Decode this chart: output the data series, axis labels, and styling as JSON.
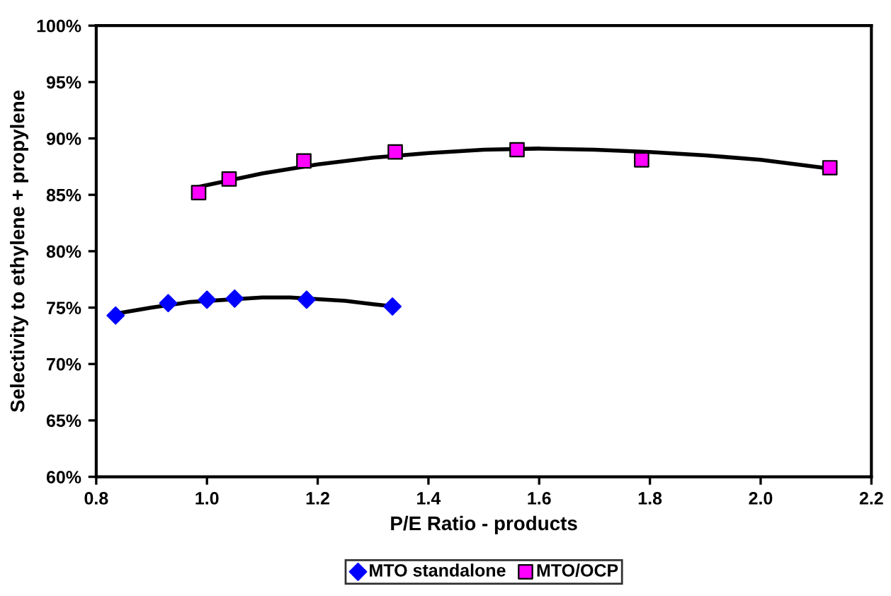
{
  "chart_data": {
    "type": "scatter",
    "xlabel": "P/E Ratio - products",
    "ylabel": "Selectivity to ethylene + propylene",
    "xlim": [
      0.8,
      2.2
    ],
    "xticks": [
      {
        "value": 0.8,
        "label": "0.8"
      },
      {
        "value": 1.0,
        "label": "1.0"
      },
      {
        "value": 1.2,
        "label": "1.2"
      },
      {
        "value": 1.4,
        "label": "1.4"
      },
      {
        "value": 1.6,
        "label": "1.6"
      },
      {
        "value": 1.8,
        "label": "1.8"
      },
      {
        "value": 2.0,
        "label": "2.0"
      },
      {
        "value": 2.2,
        "label": "2.2"
      }
    ],
    "ylim": [
      60,
      100
    ],
    "yticks": [
      {
        "value": 60,
        "label": "60%"
      },
      {
        "value": 65,
        "label": "65%"
      },
      {
        "value": 70,
        "label": "70%"
      },
      {
        "value": 75,
        "label": "75%"
      },
      {
        "value": 80,
        "label": "80%"
      },
      {
        "value": 85,
        "label": "85%"
      },
      {
        "value": 90,
        "label": "90%"
      },
      {
        "value": 95,
        "label": "95%"
      },
      {
        "value": 100,
        "label": "100%"
      }
    ],
    "grid": false,
    "legend": "bottom",
    "series": [
      {
        "name": "MTO standalone",
        "marker": "diamond",
        "color": "#0000ff",
        "x": [
          0.835,
          0.93,
          1.0,
          1.05,
          1.18,
          1.335
        ],
        "values": [
          74.3,
          75.4,
          75.7,
          75.8,
          75.7,
          75.1
        ]
      },
      {
        "name": "MTO/OCP",
        "marker": "square",
        "color": "#ff00ff",
        "x": [
          0.985,
          1.04,
          1.175,
          1.34,
          1.56,
          1.785,
          2.125
        ],
        "values": [
          85.2,
          86.4,
          88.0,
          88.8,
          89.0,
          88.1,
          87.4
        ]
      },
      {
        "type": "line",
        "color": "#000000",
        "x": [
          0.84,
          0.9,
          0.97,
          1.1,
          1.15,
          1.25,
          1.3,
          1.32
        ],
        "values": [
          74.5,
          75.0,
          75.5,
          75.9,
          75.9,
          75.6,
          75.3,
          75.2
        ]
      },
      {
        "type": "line",
        "color": "#000000",
        "x": [
          0.985,
          1.1,
          1.2,
          1.3,
          1.4,
          1.5,
          1.6,
          1.7,
          1.8,
          1.9,
          2.0,
          2.13
        ],
        "values": [
          85.7,
          86.9,
          87.7,
          88.3,
          88.7,
          89.0,
          89.1,
          89.0,
          88.8,
          88.5,
          88.1,
          87.3
        ]
      }
    ]
  }
}
